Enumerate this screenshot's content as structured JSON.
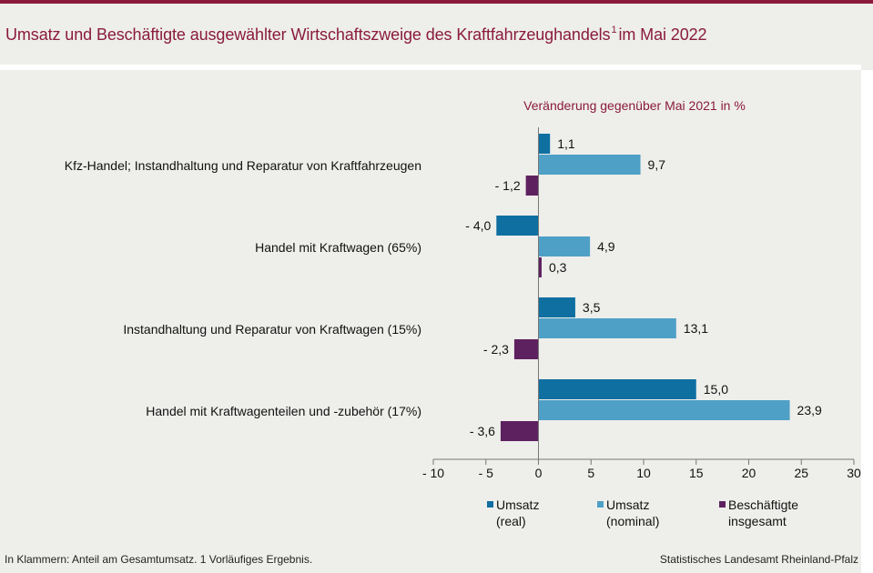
{
  "header": {
    "title_main": "Umsatz und Beschäftigte ausgewählter Wirtschaftszweige des Kraftfahrzeughandels",
    "title_footnote_mark": "1",
    "title_suffix": "im Mai 2022"
  },
  "footer": {
    "note": "In Klammern: Anteil am Gesamtumsatz. 1 Vorläufiges Ergebnis.",
    "source": "Statistisches Landesamt Rheinland-Pfalz"
  },
  "chart_data": {
    "type": "bar",
    "orientation": "horizontal",
    "title": "Umsatz und Beschäftigte ausgewählter Wirtschaftszweige des Kraftfahrzeughandels im Mai 2022",
    "subtitle": "Veränderung gegenüber Mai 2021 in %",
    "categories": [
      "Kfz-Handel; Instandhaltung und Reparatur von Kraftfahrzeugen",
      "Handel mit Kraftwagen (65%)",
      "Instandhaltung und Reparatur von Kraftwagen (15%)",
      "Handel mit Kraftwagenteilen und -zubehör (17%)"
    ],
    "series": [
      {
        "name": "Umsatz (real)",
        "legend_lines": [
          "Umsatz",
          "(real)"
        ],
        "color": "#0f6fa1",
        "values": [
          1.1,
          -4.0,
          3.5,
          15.0
        ],
        "labels": [
          "1,1",
          "- 4,0",
          "3,5",
          "15,0"
        ]
      },
      {
        "name": "Umsatz (nominal)",
        "legend_lines": [
          "Umsatz",
          "(nominal)"
        ],
        "color": "#4ea0c6",
        "values": [
          9.7,
          4.9,
          13.1,
          23.9
        ],
        "labels": [
          "9,7",
          "4,9",
          "13,1",
          "23,9"
        ]
      },
      {
        "name": "Beschäftigte insgesamt",
        "legend_lines": [
          "Beschäftigte",
          "insgesamt"
        ],
        "color": "#5e2160",
        "values": [
          -1.2,
          0.3,
          -2.3,
          -3.6
        ],
        "labels": [
          "- 1,2",
          "0,3",
          "- 2,3",
          "- 3,6"
        ]
      }
    ],
    "xlim": [
      -10,
      30
    ],
    "xticks": [
      -10,
      -5,
      0,
      5,
      10,
      15,
      20,
      25,
      30
    ],
    "xtick_labels": [
      "- 10",
      "- 5",
      "0",
      "5",
      "10",
      "15",
      "20",
      "25",
      "30"
    ],
    "grid": false,
    "legend_position": "bottom"
  }
}
